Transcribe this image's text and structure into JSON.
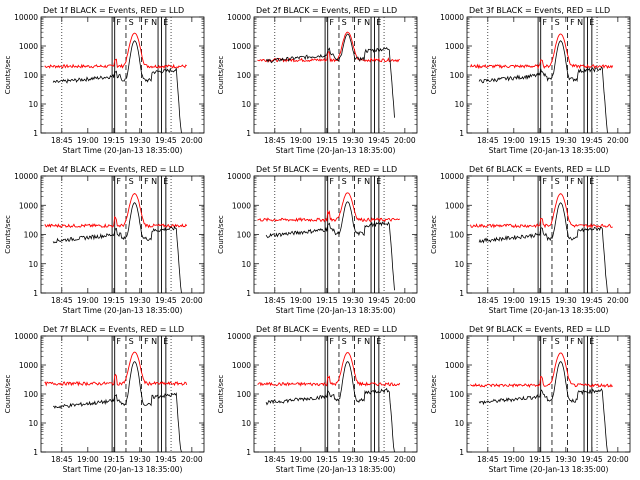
{
  "chart_data": {
    "type": "line",
    "layout": "3x3 grid",
    "ylabel": "Counts/sec",
    "xlabel": "Start Time (20-Jan-13 18:35:00)",
    "y_scale": "log",
    "ylim": [
      1,
      10000
    ],
    "y_ticks": [
      "1",
      "10",
      "100",
      "1000",
      "10000"
    ],
    "x_ticks": [
      "18:45",
      "19:00",
      "19:15",
      "19:30",
      "19:45",
      "20:00"
    ],
    "marker_letters": [
      "F",
      "S",
      "F",
      "N",
      "E"
    ],
    "series_colors": {
      "events": "#000000",
      "lld": "#ff0000"
    },
    "panels": [
      {
        "title": "Det 1f BLACK = Events, RED = LLD",
        "lld_base": 200,
        "lld_peak": 2800,
        "ev_base": 55,
        "ev_peak": 1500
      },
      {
        "title": "Det 2f BLACK = Events, RED = LLD",
        "lld_base": 330,
        "lld_peak": 3000,
        "ev_base": 300,
        "ev_peak": 2500
      },
      {
        "title": "Det 3f BLACK = Events, RED = LLD",
        "lld_base": 200,
        "lld_peak": 2600,
        "ev_base": 60,
        "ev_peak": 1500
      },
      {
        "title": "Det 4f BLACK = Events, RED = LLD",
        "lld_base": 200,
        "lld_peak": 2500,
        "ev_base": 60,
        "ev_peak": 1200
      },
      {
        "title": "Det 5f BLACK = Events, RED = LLD",
        "lld_base": 320,
        "lld_peak": 2700,
        "ev_base": 90,
        "ev_peak": 1300
      },
      {
        "title": "Det 6f BLACK = Events, RED = LLD",
        "lld_base": 200,
        "lld_peak": 2500,
        "ev_base": 60,
        "ev_peak": 1200
      },
      {
        "title": "Det 7f BLACK = Events, RED = LLD",
        "lld_base": 230,
        "lld_peak": 2800,
        "ev_base": 35,
        "ev_peak": 1300
      },
      {
        "title": "Det 8f BLACK = Events, RED = LLD",
        "lld_base": 220,
        "lld_peak": 2700,
        "ev_base": 50,
        "ev_peak": 1300
      },
      {
        "title": "Det 9f BLACK = Events, RED = LLD",
        "lld_base": 200,
        "lld_peak": 2600,
        "ev_base": 50,
        "ev_peak": 1300
      }
    ]
  }
}
